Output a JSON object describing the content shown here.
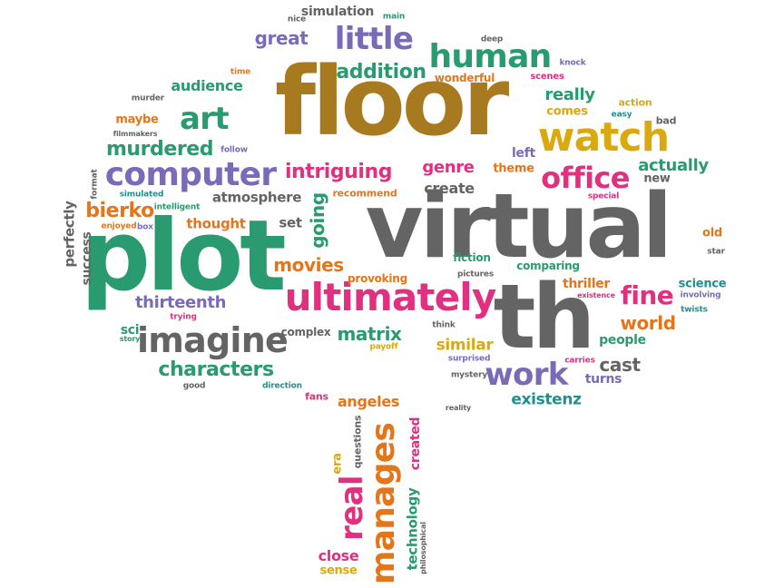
{
  "colors": {
    "brown": "#a87a20",
    "gray": "#646464",
    "green": "#2a9a70",
    "teal": "#1f8f8f",
    "pink": "#e0307f",
    "purple": "#7a6ab8",
    "orange": "#e3761a",
    "gold": "#d9a90f",
    "lightgray": "#8a8a8a"
  },
  "words": [
    {
      "text": "floor",
      "color": "brown"
    },
    {
      "text": "virtual",
      "color": "gray"
    },
    {
      "text": "plot",
      "color": "green"
    },
    {
      "text": "th",
      "color": "gray"
    },
    {
      "text": "ultimately",
      "color": "pink"
    },
    {
      "text": "watch",
      "color": "gold"
    },
    {
      "text": "imagine",
      "color": "gray"
    },
    {
      "text": "computer",
      "color": "purple"
    },
    {
      "text": "human",
      "color": "green"
    },
    {
      "text": "little",
      "color": "purple"
    },
    {
      "text": "art",
      "color": "green"
    },
    {
      "text": "work",
      "color": "purple"
    },
    {
      "text": "office",
      "color": "pink"
    },
    {
      "text": "manages",
      "color": "orange"
    },
    {
      "text": "real",
      "color": "pink"
    },
    {
      "text": "intriguing",
      "color": "pink"
    },
    {
      "text": "characters",
      "color": "green"
    },
    {
      "text": "murdered",
      "color": "green"
    },
    {
      "text": "fine",
      "color": "pink"
    },
    {
      "text": "addition",
      "color": "green"
    },
    {
      "text": "great",
      "color": "purple"
    },
    {
      "text": "bierko",
      "color": "orange"
    },
    {
      "text": "thirteenth",
      "color": "purple"
    },
    {
      "text": "movies",
      "color": "orange"
    },
    {
      "text": "matrix",
      "color": "green"
    },
    {
      "text": "world",
      "color": "orange"
    },
    {
      "text": "genre",
      "color": "pink"
    },
    {
      "text": "create",
      "color": "gray"
    },
    {
      "text": "really",
      "color": "green"
    },
    {
      "text": "actually",
      "color": "green"
    },
    {
      "text": "audience",
      "color": "green"
    },
    {
      "text": "atmosphere",
      "color": "gray"
    },
    {
      "text": "thought",
      "color": "orange"
    },
    {
      "text": "going",
      "color": "green"
    },
    {
      "text": "set",
      "color": "gray"
    },
    {
      "text": "similar",
      "color": "gold"
    },
    {
      "text": "cast",
      "color": "gray"
    },
    {
      "text": "existenz",
      "color": "teal"
    },
    {
      "text": "angeles",
      "color": "orange"
    },
    {
      "text": "technology",
      "color": "green"
    },
    {
      "text": "created",
      "color": "pink"
    },
    {
      "text": "close",
      "color": "pink"
    },
    {
      "text": "sense",
      "color": "gold"
    },
    {
      "text": "era",
      "color": "gold"
    },
    {
      "text": "questions",
      "color": "gray"
    },
    {
      "text": "perfectly",
      "color": "gray"
    },
    {
      "text": "success",
      "color": "gray"
    },
    {
      "text": "theme",
      "color": "orange"
    },
    {
      "text": "left",
      "color": "purple"
    },
    {
      "text": "comes",
      "color": "gold"
    },
    {
      "text": "thriller",
      "color": "orange"
    },
    {
      "text": "people",
      "color": "green"
    },
    {
      "text": "science",
      "color": "teal"
    },
    {
      "text": "old",
      "color": "orange"
    },
    {
      "text": "new",
      "color": "gray"
    },
    {
      "text": "bad",
      "color": "gray"
    },
    {
      "text": "action",
      "color": "gold"
    },
    {
      "text": "simulation",
      "color": "gray"
    },
    {
      "text": "maybe",
      "color": "orange"
    },
    {
      "text": "wonderful",
      "color": "orange"
    },
    {
      "text": "scenes",
      "color": "pink"
    },
    {
      "text": "comparing",
      "color": "green"
    },
    {
      "text": "fiction",
      "color": "green"
    },
    {
      "text": "provoking",
      "color": "orange"
    },
    {
      "text": "recommend",
      "color": "orange"
    },
    {
      "text": "complex",
      "color": "gray"
    },
    {
      "text": "sci",
      "color": "green"
    },
    {
      "text": "fans",
      "color": "pink"
    },
    {
      "text": "turns",
      "color": "purple"
    },
    {
      "text": "nice",
      "color": "gray"
    },
    {
      "text": "main",
      "color": "green"
    },
    {
      "text": "deep",
      "color": "gray"
    },
    {
      "text": "knock",
      "color": "purple"
    },
    {
      "text": "time",
      "color": "orange"
    },
    {
      "text": "murder",
      "color": "gray"
    },
    {
      "text": "filmmakers",
      "color": "gray"
    },
    {
      "text": "follow",
      "color": "purple"
    },
    {
      "text": "easy",
      "color": "teal"
    },
    {
      "text": "format",
      "color": "gray"
    },
    {
      "text": "simulated",
      "color": "teal"
    },
    {
      "text": "intelligent",
      "color": "green"
    },
    {
      "text": "enjoyed",
      "color": "orange"
    },
    {
      "text": "box",
      "color": "purple"
    },
    {
      "text": "special",
      "color": "pink"
    },
    {
      "text": "star",
      "color": "gray"
    },
    {
      "text": "involving",
      "color": "purple"
    },
    {
      "text": "twists",
      "color": "teal"
    },
    {
      "text": "existence",
      "color": "pink"
    },
    {
      "text": "pictures",
      "color": "gray"
    },
    {
      "text": "think",
      "color": "gray"
    },
    {
      "text": "trying",
      "color": "pink"
    },
    {
      "text": "story",
      "color": "green"
    },
    {
      "text": "payoff",
      "color": "gold"
    },
    {
      "text": "surprised",
      "color": "purple"
    },
    {
      "text": "mystery",
      "color": "gray"
    },
    {
      "text": "carries",
      "color": "pink"
    },
    {
      "text": "good",
      "color": "gray"
    },
    {
      "text": "direction",
      "color": "teal"
    },
    {
      "text": "reality",
      "color": "gray"
    },
    {
      "text": "philosophical",
      "color": "gray"
    }
  ]
}
